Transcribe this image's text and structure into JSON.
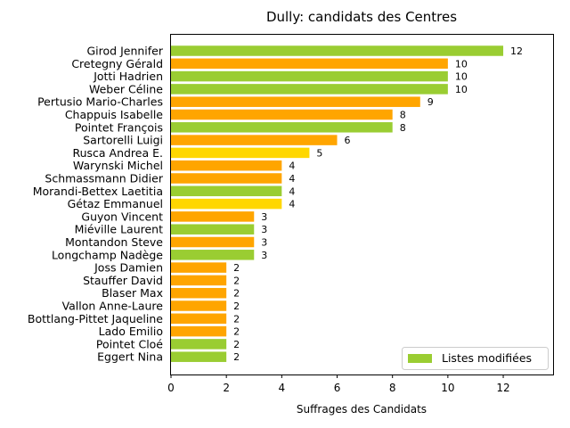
{
  "chart_data": {
    "type": "bar",
    "orientation": "horizontal",
    "title": "Dully: candidats des Centres",
    "xlabel": "Suffrages des Candidats",
    "ylabel": "",
    "xlim": [
      0,
      13.8
    ],
    "xticks": [
      0,
      2,
      4,
      6,
      8,
      10,
      12
    ],
    "grid": false,
    "legend": {
      "position": "bottom-right",
      "entries": [
        {
          "label": "Listes modifiées",
          "color": "#9ACD32"
        }
      ]
    },
    "colors": {
      "green": "#9ACD32",
      "orange": "#FFA500",
      "yellow": "#FFD700"
    },
    "categories": [
      "Girod Jennifer",
      "Cretegny Gérald",
      "Jotti Hadrien",
      "Weber Céline",
      "Pertusio Mario-Charles",
      "Chappuis Isabelle",
      "Pointet François",
      "Sartorelli Luigi",
      "Rusca Andrea E.",
      "Warynski Michel",
      "Schmassmann Didier",
      "Morandi-Bettex Laetitia",
      "Gétaz Emmanuel",
      "Guyon Vincent",
      "Miéville Laurent",
      "Montandon Steve",
      "Longchamp Nadège",
      "Joss Damien",
      "Stauffer David",
      "Blaser Max",
      "Vallon Anne-Laure",
      "Bottlang-Pittet Jaqueline",
      "Lado Emilio",
      "Pointet Cloé",
      "Eggert Nina"
    ],
    "values": [
      12,
      10,
      10,
      10,
      9,
      8,
      8,
      6,
      5,
      4,
      4,
      4,
      4,
      3,
      3,
      3,
      3,
      2,
      2,
      2,
      2,
      2,
      2,
      2,
      2
    ],
    "bar_colors": [
      "green",
      "orange",
      "green",
      "green",
      "orange",
      "orange",
      "green",
      "orange",
      "yellow",
      "orange",
      "orange",
      "green",
      "yellow",
      "orange",
      "green",
      "orange",
      "green",
      "orange",
      "orange",
      "orange",
      "orange",
      "orange",
      "orange",
      "green",
      "green"
    ]
  }
}
